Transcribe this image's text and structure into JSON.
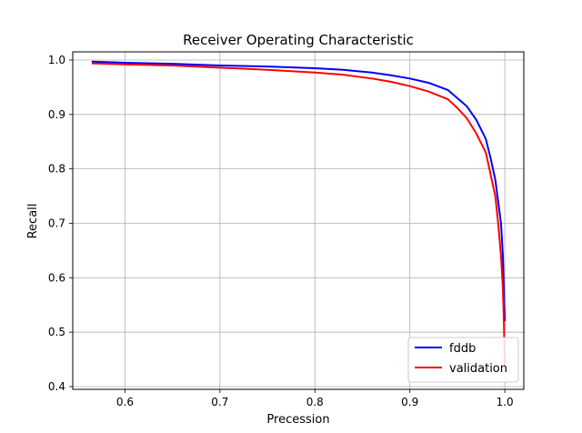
{
  "chart_data": {
    "type": "line",
    "title": "Receiver Operating Characteristic",
    "xlabel": "Precession",
    "ylabel": "Recall",
    "xlim": [
      0.545,
      1.02
    ],
    "ylim": [
      0.395,
      1.015
    ],
    "xticks": [
      0.6,
      0.7,
      0.8,
      0.9,
      1.0
    ],
    "xtick_labels": [
      "0.6",
      "0.7",
      "0.8",
      "0.9",
      "1.0"
    ],
    "yticks": [
      0.4,
      0.5,
      0.6,
      0.7,
      0.8,
      0.9,
      1.0
    ],
    "ytick_labels": [
      "0.4",
      "0.5",
      "0.6",
      "0.7",
      "0.8",
      "0.9",
      "1.0"
    ],
    "grid": true,
    "legend_position": "lower-right",
    "series": [
      {
        "name": "fddb",
        "color": "#0000ff",
        "x": [
          0.565,
          0.6,
          0.65,
          0.7,
          0.75,
          0.8,
          0.83,
          0.86,
          0.88,
          0.9,
          0.92,
          0.94,
          0.95,
          0.96,
          0.97,
          0.98,
          0.985,
          0.99,
          0.993,
          0.996,
          0.998,
          0.999,
          1.0
        ],
        "y": [
          0.997,
          0.995,
          0.993,
          0.99,
          0.988,
          0.985,
          0.982,
          0.977,
          0.972,
          0.966,
          0.958,
          0.945,
          0.93,
          0.915,
          0.89,
          0.855,
          0.82,
          0.78,
          0.74,
          0.7,
          0.64,
          0.58,
          0.52
        ]
      },
      {
        "name": "validation",
        "color": "#ff0000",
        "x": [
          0.565,
          0.6,
          0.65,
          0.7,
          0.75,
          0.8,
          0.83,
          0.86,
          0.88,
          0.9,
          0.92,
          0.94,
          0.95,
          0.96,
          0.97,
          0.98,
          0.985,
          0.99,
          0.993,
          0.996,
          0.998,
          0.999,
          1.0
        ],
        "y": [
          0.994,
          0.992,
          0.99,
          0.986,
          0.982,
          0.977,
          0.973,
          0.966,
          0.96,
          0.952,
          0.942,
          0.928,
          0.912,
          0.893,
          0.865,
          0.83,
          0.79,
          0.75,
          0.7,
          0.64,
          0.58,
          0.52,
          0.44
        ]
      }
    ]
  }
}
